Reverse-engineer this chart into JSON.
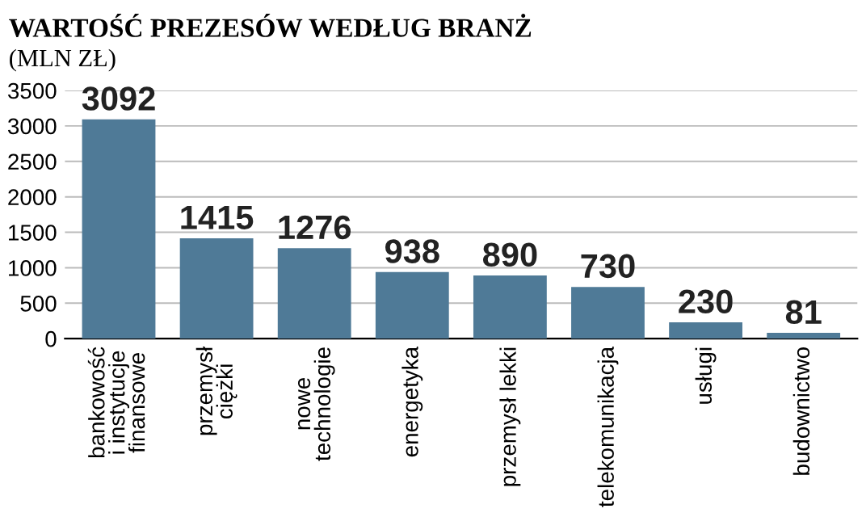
{
  "chart_data": {
    "type": "bar",
    "title": "WARTOŚĆ PREZESÓW WEDŁUG BRANŻ",
    "subtitle": "(MLN ZŁ)",
    "categories": [
      "bankowość\ni instytucje\nfinansowe",
      "przemysł\nciężki",
      "nowe\ntechnologie",
      "energetyka",
      "przemysł lekki",
      "telekomunikacja",
      "usługi",
      "budownictwo"
    ],
    "values": [
      3092,
      1415,
      1276,
      938,
      890,
      730,
      230,
      81
    ],
    "color": "#4f7a97",
    "data_labels": true,
    "grid": "y",
    "ylim": [
      0,
      3500
    ],
    "yticks": [
      0,
      500,
      1000,
      1500,
      2000,
      2500,
      3000,
      3500
    ]
  }
}
